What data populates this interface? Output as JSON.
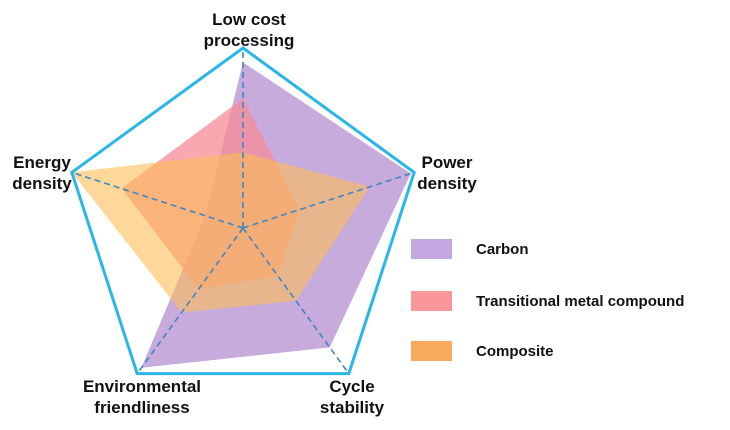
{
  "chart_data": {
    "type": "radar",
    "title": "",
    "axes": [
      {
        "label_lines": [
          "Low cost",
          "processing"
        ]
      },
      {
        "label_lines": [
          "Power",
          "density"
        ]
      },
      {
        "label_lines": [
          "Cycle",
          "stability"
        ]
      },
      {
        "label_lines": [
          "Environmental",
          "friendliness"
        ]
      },
      {
        "label_lines": [
          "Energy",
          "density"
        ]
      }
    ],
    "range": [
      0,
      1
    ],
    "grid": "dashed spokes",
    "legend_position": "right",
    "series": [
      {
        "name": "Carbon",
        "color": "#b48fd1",
        "opacity": 0.75,
        "values": [
          0.92,
          0.98,
          0.82,
          0.96,
          0.22
        ]
      },
      {
        "name": "Transitional metal compound",
        "color": "#f78b95",
        "opacity": 0.75,
        "values": [
          0.72,
          0.33,
          0.33,
          0.42,
          0.71
        ]
      },
      {
        "name": "Composite",
        "color": "#fbbe57",
        "opacity": 0.6,
        "values": [
          0.42,
          0.74,
          0.5,
          0.58,
          1.0
        ]
      }
    ],
    "legend_swatch_colors": [
      "#c4a6e0",
      "#f9979d",
      "#f9a95c"
    ],
    "outline_color": "#29b6e8",
    "spoke_color": "#3f86c4"
  }
}
